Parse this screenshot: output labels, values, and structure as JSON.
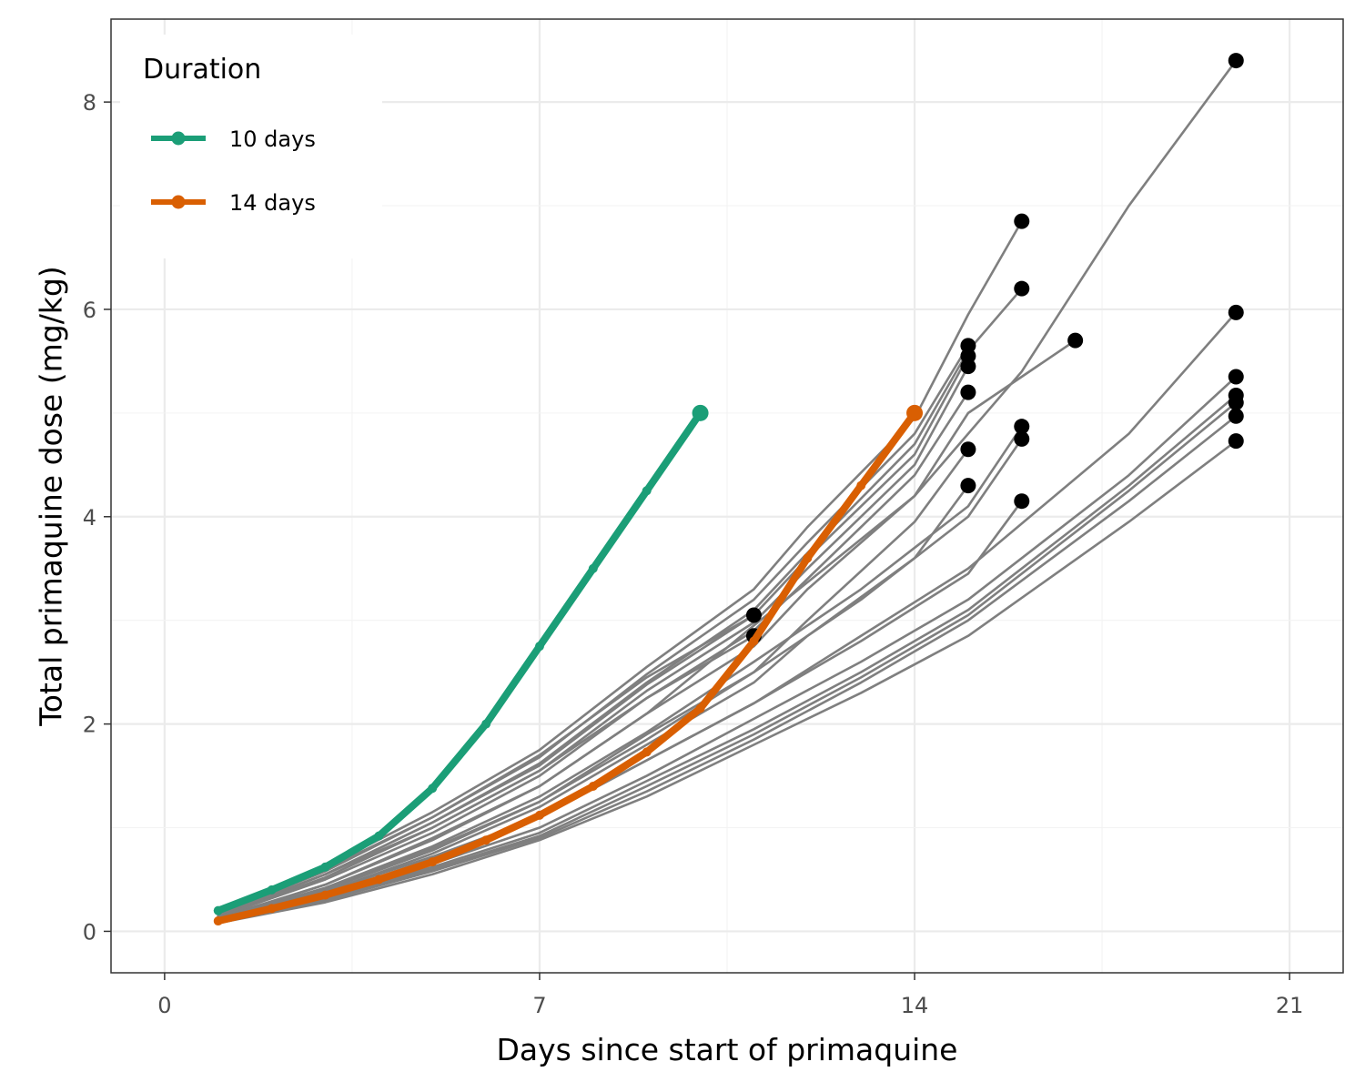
{
  "chart_data": {
    "type": "line",
    "xlabel": "Days since start of primaquine",
    "ylabel": "Total primaquine dose (mg/kg)",
    "xlim": [
      -1,
      22
    ],
    "ylim": [
      -0.4,
      8.8
    ],
    "x_ticks": [
      0,
      7,
      14,
      21
    ],
    "y_ticks": [
      0,
      2,
      4,
      6,
      8
    ],
    "grid": true,
    "legend": {
      "title": "Duration",
      "placement": "top-left",
      "entries": [
        {
          "label": "10 days",
          "color": "#1b9e77"
        },
        {
          "label": "14 days",
          "color": "#d95f02"
        }
      ]
    },
    "background_lines_color": "#7f7f7f",
    "endpoint_color": "#000000",
    "series": [
      {
        "name": "10 days",
        "color": "#1b9e77",
        "x": [
          1,
          2,
          3,
          4,
          5,
          6,
          7,
          8,
          9,
          10
        ],
        "y": [
          0.2,
          0.4,
          0.62,
          0.92,
          1.38,
          2.0,
          2.75,
          3.5,
          4.25,
          5.0
        ]
      },
      {
        "name": "14 days",
        "color": "#d95f02",
        "x": [
          1,
          2,
          3,
          4,
          5,
          6,
          7,
          8,
          9,
          10,
          11,
          12,
          13,
          14
        ],
        "y": [
          0.1,
          0.22,
          0.35,
          0.5,
          0.67,
          0.88,
          1.12,
          1.4,
          1.73,
          2.15,
          2.8,
          3.6,
          4.3,
          5.0
        ]
      }
    ],
    "background_series": [
      {
        "x": [
          1,
          3,
          5,
          7,
          9,
          11,
          12,
          14,
          15,
          16
        ],
        "y": [
          0.2,
          0.62,
          1.15,
          1.75,
          2.55,
          3.3,
          3.9,
          4.95,
          5.95,
          6.85
        ]
      },
      {
        "x": [
          1,
          3,
          5,
          7,
          9,
          11,
          12,
          14,
          15,
          16
        ],
        "y": [
          0.15,
          0.55,
          1.05,
          1.62,
          2.4,
          3.1,
          3.65,
          4.7,
          5.6,
          6.2
        ]
      },
      {
        "x": [
          1,
          3,
          5,
          7,
          9,
          11,
          12,
          14,
          15
        ],
        "y": [
          0.17,
          0.58,
          1.1,
          1.68,
          2.48,
          3.2,
          3.75,
          4.8,
          5.65
        ]
      },
      {
        "x": [
          1,
          3,
          5,
          7,
          9,
          11,
          12,
          14,
          15
        ],
        "y": [
          0.16,
          0.55,
          1.05,
          1.6,
          2.38,
          3.05,
          3.6,
          4.6,
          5.55
        ]
      },
      {
        "x": [
          1,
          3,
          5,
          7,
          9,
          11,
          12,
          14,
          15
        ],
        "y": [
          0.15,
          0.52,
          1.0,
          1.55,
          2.32,
          2.98,
          3.5,
          4.5,
          5.45
        ]
      },
      {
        "x": [
          1,
          3,
          5,
          7,
          9,
          11,
          12,
          14,
          15
        ],
        "y": [
          0.14,
          0.5,
          0.95,
          1.5,
          2.25,
          2.9,
          3.4,
          4.4,
          5.2
        ]
      },
      {
        "x": [
          1,
          3,
          5,
          7,
          9,
          11,
          12,
          14,
          15,
          17
        ],
        "y": [
          0.13,
          0.45,
          0.9,
          1.4,
          2.1,
          2.75,
          3.3,
          4.2,
          5.0,
          5.7
        ]
      },
      {
        "x": [
          1,
          3,
          5,
          7,
          9,
          11,
          12,
          14,
          15
        ],
        "y": [
          0.11,
          0.4,
          0.8,
          1.25,
          1.9,
          2.5,
          3.0,
          3.95,
          4.65
        ]
      },
      {
        "x": [
          1,
          3,
          5,
          7,
          9,
          11,
          12,
          14,
          15
        ],
        "y": [
          0.1,
          0.38,
          0.75,
          1.2,
          1.8,
          2.4,
          2.85,
          3.6,
          4.3
        ]
      },
      {
        "x": [
          1,
          3,
          5,
          7,
          9,
          11,
          13,
          15,
          16
        ],
        "y": [
          0.12,
          0.42,
          0.82,
          1.3,
          1.92,
          2.6,
          3.3,
          4.1,
          4.87
        ]
      },
      {
        "x": [
          1,
          3,
          5,
          7,
          9,
          11,
          13,
          15,
          16
        ],
        "y": [
          0.11,
          0.4,
          0.78,
          1.25,
          1.85,
          2.5,
          3.2,
          4.0,
          4.75
        ]
      },
      {
        "x": [
          1,
          3,
          5,
          7,
          9,
          11,
          13,
          15,
          16
        ],
        "y": [
          0.1,
          0.35,
          0.7,
          1.1,
          1.65,
          2.2,
          2.8,
          3.45,
          4.15
        ]
      },
      {
        "x": [
          1,
          3,
          5,
          7,
          9,
          11,
          13,
          15,
          18,
          20
        ],
        "y": [
          0.11,
          0.38,
          0.72,
          1.1,
          1.65,
          2.2,
          2.85,
          3.5,
          4.8,
          5.97
        ]
      },
      {
        "x": [
          1,
          3,
          5,
          7,
          9,
          11,
          13,
          15,
          18,
          20
        ],
        "y": [
          0.1,
          0.34,
          0.65,
          1.0,
          1.5,
          2.05,
          2.6,
          3.2,
          4.4,
          5.35
        ]
      },
      {
        "x": [
          1,
          3,
          5,
          7,
          9,
          11,
          13,
          15,
          18,
          20
        ],
        "y": [
          0.1,
          0.32,
          0.62,
          0.95,
          1.45,
          1.95,
          2.5,
          3.1,
          4.3,
          5.17
        ]
      },
      {
        "x": [
          1,
          3,
          5,
          7,
          9,
          11,
          13,
          15,
          18,
          20
        ],
        "y": [
          0.09,
          0.31,
          0.6,
          0.92,
          1.4,
          1.9,
          2.45,
          3.05,
          4.25,
          5.1
        ]
      },
      {
        "x": [
          1,
          3,
          5,
          7,
          9,
          11,
          13,
          15,
          18,
          20
        ],
        "y": [
          0.09,
          0.3,
          0.58,
          0.9,
          1.35,
          1.85,
          2.4,
          3.0,
          4.15,
          4.97
        ]
      },
      {
        "x": [
          1,
          3,
          5,
          7,
          9,
          11,
          13,
          15,
          18,
          20
        ],
        "y": [
          0.08,
          0.28,
          0.55,
          0.88,
          1.3,
          1.8,
          2.3,
          2.85,
          3.95,
          4.73
        ]
      },
      {
        "x": [
          1,
          3,
          5,
          7,
          9,
          11,
          14,
          16,
          18,
          20
        ],
        "y": [
          0.12,
          0.45,
          0.88,
          1.4,
          2.1,
          2.95,
          4.2,
          5.4,
          7.0,
          8.4
        ]
      },
      {
        "x": [
          1,
          3,
          5,
          7,
          9,
          11
        ],
        "y": [
          0.18,
          0.6,
          1.1,
          1.7,
          2.45,
          3.05
        ]
      },
      {
        "x": [
          1,
          3,
          5,
          7,
          9,
          11
        ],
        "y": [
          0.16,
          0.55,
          1.0,
          1.55,
          2.25,
          2.85
        ]
      }
    ]
  }
}
